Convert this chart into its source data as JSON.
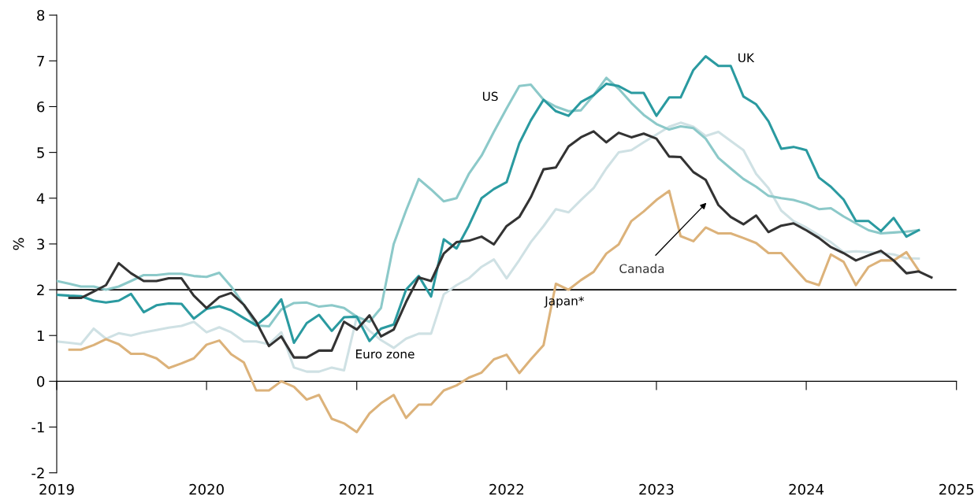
{
  "chart_data": {
    "type": "line",
    "ylabel": "%",
    "x": [
      "2019-01",
      "2019-02",
      "2019-03",
      "2019-04",
      "2019-05",
      "2019-06",
      "2019-07",
      "2019-08",
      "2019-09",
      "2019-10",
      "2019-11",
      "2019-12",
      "2020-01",
      "2020-02",
      "2020-03",
      "2020-04",
      "2020-05",
      "2020-06",
      "2020-07",
      "2020-08",
      "2020-09",
      "2020-10",
      "2020-11",
      "2020-12",
      "2021-01",
      "2021-02",
      "2021-03",
      "2021-04",
      "2021-05",
      "2021-06",
      "2021-07",
      "2021-08",
      "2021-09",
      "2021-10",
      "2021-11",
      "2021-12",
      "2022-01",
      "2022-02",
      "2022-03",
      "2022-04",
      "2022-05",
      "2022-06",
      "2022-07",
      "2022-08",
      "2022-09",
      "2022-10",
      "2022-11",
      "2022-12",
      "2023-01",
      "2023-02",
      "2023-03",
      "2023-04",
      "2023-05",
      "2023-06",
      "2023-07",
      "2023-08",
      "2023-09",
      "2023-10",
      "2023-11",
      "2023-12",
      "2024-01",
      "2024-02",
      "2024-03",
      "2024-04",
      "2024-05",
      "2024-06",
      "2024-07",
      "2024-08",
      "2024-09",
      "2024-10",
      "2024-11"
    ],
    "series": [
      {
        "name": "Euro zone",
        "color": "#cfe1e4",
        "values": [
          0.87,
          0.84,
          0.81,
          1.15,
          0.93,
          1.05,
          1.0,
          1.07,
          1.12,
          1.17,
          1.21,
          1.3,
          1.07,
          1.18,
          1.07,
          0.87,
          0.87,
          0.81,
          1.07,
          0.3,
          0.21,
          0.21,
          0.3,
          0.24,
          1.4,
          1.1,
          0.9,
          0.73,
          0.93,
          1.04,
          1.04,
          1.9,
          2.1,
          2.25,
          2.5,
          2.66,
          2.25,
          2.65,
          3.04,
          3.39,
          3.76,
          3.69,
          3.96,
          4.22,
          4.65,
          5.0,
          5.05,
          5.22,
          5.39,
          5.56,
          5.65,
          5.56,
          5.36,
          5.45,
          5.25,
          5.05,
          4.53,
          4.22,
          3.73,
          3.5,
          3.36,
          3.19,
          3.04,
          2.82,
          2.84,
          2.82,
          2.8,
          2.77,
          2.69,
          2.68,
          null
        ]
      },
      {
        "name": "US",
        "color": "#8cc9c9",
        "values": [
          2.19,
          2.13,
          2.07,
          2.07,
          2.0,
          2.07,
          2.19,
          2.32,
          2.32,
          2.35,
          2.35,
          2.3,
          2.28,
          2.37,
          2.07,
          1.67,
          1.22,
          1.2,
          1.57,
          1.71,
          1.72,
          1.63,
          1.66,
          1.6,
          1.41,
          1.3,
          1.6,
          3.0,
          3.73,
          4.42,
          4.19,
          3.93,
          4.0,
          4.53,
          4.93,
          5.45,
          5.96,
          6.45,
          6.48,
          6.15,
          6.0,
          5.9,
          5.92,
          6.25,
          6.63,
          6.39,
          6.08,
          5.82,
          5.62,
          5.5,
          5.57,
          5.53,
          5.3,
          4.88,
          4.65,
          4.42,
          4.25,
          4.05,
          4.0,
          3.96,
          3.88,
          3.76,
          3.78,
          3.6,
          3.45,
          3.3,
          3.23,
          3.25,
          3.27,
          3.3,
          null
        ]
      },
      {
        "name": "UK",
        "color": "#2a9aa0",
        "values": [
          1.89,
          1.87,
          1.86,
          1.76,
          1.72,
          1.76,
          1.91,
          1.51,
          1.66,
          1.7,
          1.69,
          1.37,
          1.58,
          1.64,
          1.55,
          1.38,
          1.22,
          1.45,
          1.79,
          0.84,
          1.27,
          1.45,
          1.1,
          1.4,
          1.41,
          0.88,
          1.15,
          1.24,
          2.0,
          2.3,
          1.85,
          3.1,
          2.9,
          3.4,
          4.0,
          4.2,
          4.35,
          5.2,
          5.7,
          6.15,
          5.9,
          5.8,
          6.1,
          6.25,
          6.5,
          6.45,
          6.3,
          6.3,
          5.8,
          6.2,
          6.2,
          6.8,
          7.1,
          6.89,
          6.89,
          6.22,
          6.05,
          5.68,
          5.08,
          5.12,
          5.05,
          4.45,
          4.25,
          3.97,
          3.5,
          3.5,
          3.28,
          3.57,
          3.16,
          3.3,
          null
        ]
      },
      {
        "name": "Japan*",
        "color": "#dcb27a",
        "values": [
          null,
          0.69,
          0.69,
          0.79,
          0.92,
          0.81,
          0.6,
          0.6,
          0.5,
          0.29,
          0.39,
          0.5,
          0.8,
          0.89,
          0.59,
          0.41,
          -0.2,
          -0.2,
          0.0,
          -0.12,
          -0.4,
          -0.3,
          -0.82,
          -0.92,
          -1.11,
          -0.7,
          -0.48,
          -0.3,
          -0.8,
          -0.51,
          -0.51,
          -0.2,
          -0.09,
          0.08,
          0.19,
          0.48,
          0.58,
          0.18,
          0.48,
          0.79,
          2.13,
          2.0,
          2.21,
          2.39,
          2.79,
          2.99,
          3.5,
          3.71,
          3.96,
          4.16,
          3.17,
          3.06,
          3.36,
          3.23,
          3.23,
          3.13,
          3.02,
          2.8,
          2.8,
          2.5,
          2.19,
          2.1,
          2.77,
          2.61,
          2.1,
          2.5,
          2.64,
          2.64,
          2.82,
          2.42,
          null
        ]
      },
      {
        "name": "Canada",
        "color": "#333333",
        "values": [
          null,
          1.82,
          1.82,
          1.96,
          2.1,
          2.58,
          2.36,
          2.19,
          2.19,
          2.25,
          2.25,
          1.87,
          1.6,
          1.84,
          1.93,
          1.67,
          1.3,
          0.77,
          0.98,
          0.52,
          0.52,
          0.67,
          0.67,
          1.3,
          1.13,
          1.44,
          0.98,
          1.13,
          1.73,
          2.27,
          2.19,
          2.79,
          3.04,
          3.07,
          3.16,
          2.99,
          3.39,
          3.59,
          4.02,
          4.63,
          4.67,
          5.13,
          5.33,
          5.46,
          5.22,
          5.43,
          5.33,
          5.41,
          5.3,
          4.91,
          4.9,
          4.57,
          4.4,
          3.85,
          3.59,
          3.43,
          3.62,
          3.26,
          3.4,
          3.45,
          3.3,
          3.13,
          2.93,
          2.8,
          2.64,
          2.75,
          2.85,
          2.64,
          2.36,
          2.4,
          2.27
        ]
      }
    ],
    "xlim": [
      "2019",
      "2025"
    ],
    "xticks": [
      "2019",
      "2020",
      "2021",
      "2022",
      "2023",
      "2024",
      "2025"
    ],
    "ylim": [
      -2,
      8
    ],
    "yticks": [
      -2,
      -1,
      0,
      1,
      2,
      3,
      4,
      5,
      6,
      7,
      8
    ],
    "ref_lines": [
      {
        "axis": "y",
        "value": 2,
        "color": "#000000"
      }
    ],
    "grid": false,
    "legend": false,
    "line_style": "solid",
    "marker": "none"
  }
}
